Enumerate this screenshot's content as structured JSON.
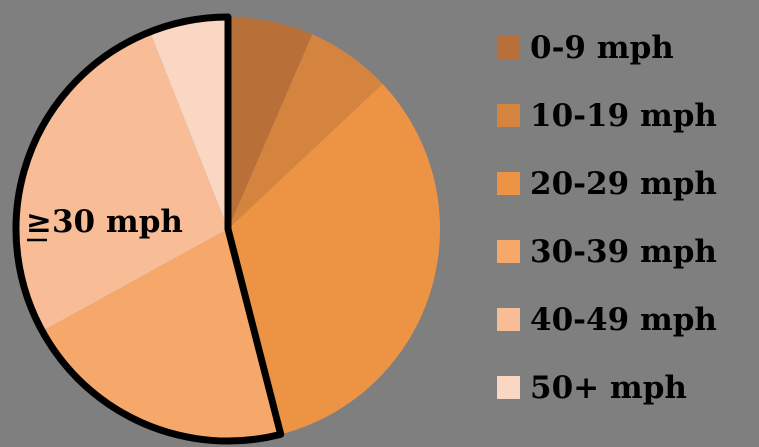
{
  "chart_data": {
    "type": "pie",
    "title": "",
    "categories": [
      "0-9 mph",
      "10-19 mph",
      "20-29 mph",
      "30-39 mph",
      "40-49 mph",
      "50+ mph"
    ],
    "values": [
      6.5,
      6.5,
      33,
      21,
      27,
      6
    ],
    "colors": [
      "#b86f38",
      "#d4843f",
      "#ed9444",
      "#f5a86a",
      "#f8bd97",
      "#fad7c3"
    ],
    "start_angle_deg": 0,
    "direction": "clockwise",
    "background_color": "#7f7f7f",
    "outline_color": "#000000",
    "highlight": {
      "label": "≥30 mph",
      "categories": [
        "30-39 mph",
        "40-49 mph",
        "50+ mph"
      ]
    },
    "legend": {
      "placement": "right"
    }
  }
}
